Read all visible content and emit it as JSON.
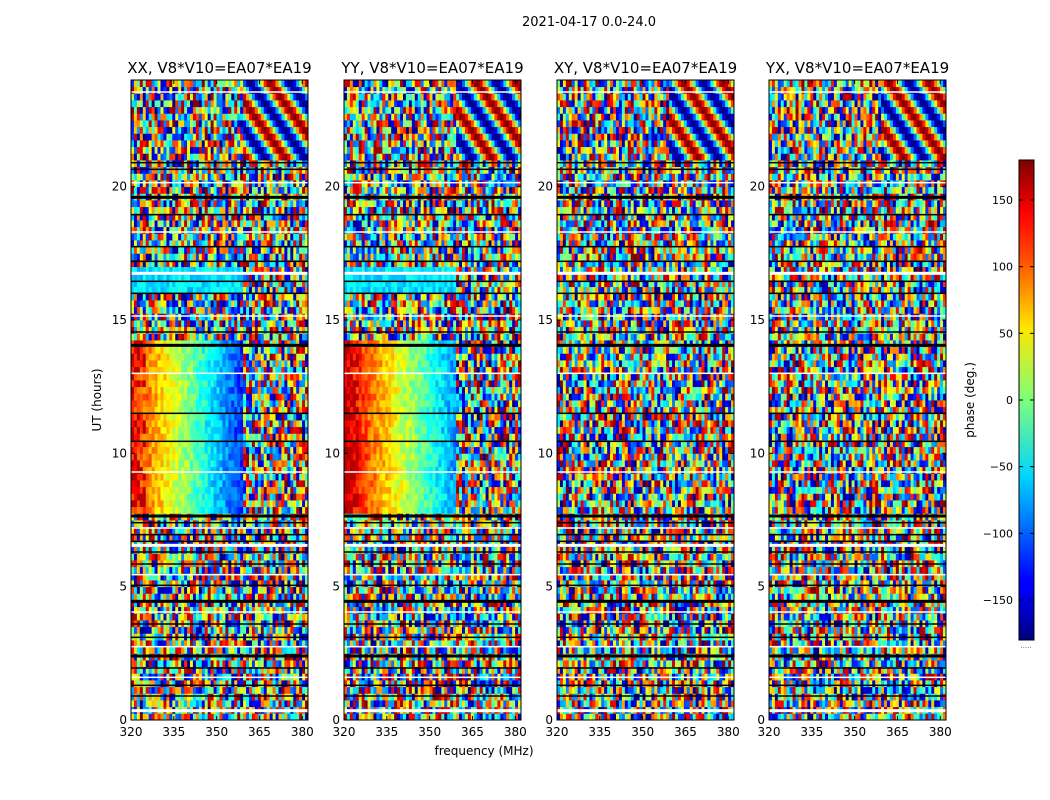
{
  "chart_data": {
    "type": "heatmap",
    "suptitle": "2021-04-17 0.0-24.0",
    "xlabel": "frequency (MHz)",
    "ylabel": "UT (hours)",
    "colorbar_label": "phase (deg.)",
    "colorbar_ticks": [
      150,
      100,
      50,
      0,
      -50,
      -100,
      -150
    ],
    "colorbar_tick_labels": [
      "150",
      "100",
      "50",
      "0",
      "−50",
      "−100",
      "−150"
    ],
    "colorbar_range": [
      -180,
      180
    ],
    "colormap": "jet",
    "xlim": [
      320,
      382
    ],
    "ylim": [
      0,
      24
    ],
    "x_ticks": [
      "320",
      "335",
      "350",
      "365",
      "380"
    ],
    "y_ticks": [
      "0",
      "5",
      "10",
      "15",
      "20"
    ],
    "panels": [
      {
        "title": "XX, V8*V10=EA07*EA19",
        "correlation": "XX"
      },
      {
        "title": "YY, V8*V10=EA07*EA19",
        "correlation": "YY"
      },
      {
        "title": "XY, V8*V10=EA07*EA19",
        "correlation": "XY"
      },
      {
        "title": "YX, V8*V10=EA07*EA19",
        "correlation": "YX"
      }
    ],
    "flagged_gaps_hours": [
      0.35,
      0.9,
      1.3,
      1.6,
      1.95,
      2.4,
      2.75,
      3.1,
      3.6,
      4.05,
      4.45,
      5.05,
      5.45,
      5.85,
      6.3,
      6.55,
      6.7,
      6.95,
      7.2,
      7.4,
      7.65,
      9.3,
      10.45,
      11.5,
      13.0,
      14.05,
      14.55,
      15.15,
      16.0,
      16.45,
      16.75,
      17.2,
      17.75,
      18.3,
      18.95,
      19.6,
      20.15,
      20.65,
      20.9,
      23.55
    ],
    "colorbar_extra_text": "....."
  }
}
